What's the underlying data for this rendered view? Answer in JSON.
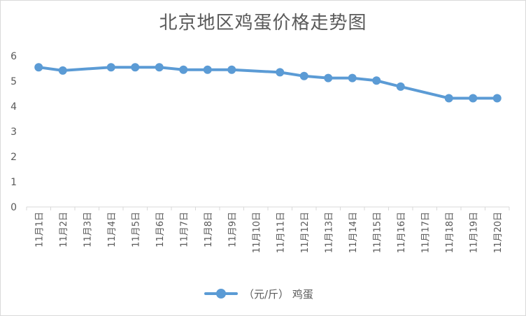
{
  "chart_data": {
    "type": "line",
    "title": "北京地区鸡蛋价格走势图",
    "xlabel": "",
    "ylabel": "",
    "ylim": [
      0,
      6
    ],
    "yticks": [
      "0",
      "1",
      "2",
      "3",
      "4",
      "5",
      "6"
    ],
    "grid": false,
    "legend_position": "bottom",
    "categories": [
      "11月1日",
      "11月2日",
      "11月3日",
      "11月4日",
      "11月5日",
      "11月6日",
      "11月7日",
      "11月8日",
      "11月9日",
      "11月10日",
      "11月11日",
      "11月12日",
      "11月13日",
      "11月14日",
      "11月15日",
      "11月16日",
      "11月17日",
      "11月18日",
      "11月19日",
      "11月20日"
    ],
    "series": [
      {
        "name": "（元/斤） 鸡蛋",
        "color": "#5b9bd5",
        "values": [
          5.55,
          5.42,
          null,
          5.55,
          5.55,
          5.55,
          5.45,
          5.45,
          5.45,
          null,
          5.35,
          5.2,
          5.12,
          5.12,
          5.02,
          4.78,
          null,
          4.32,
          4.32,
          4.32
        ]
      }
    ]
  }
}
